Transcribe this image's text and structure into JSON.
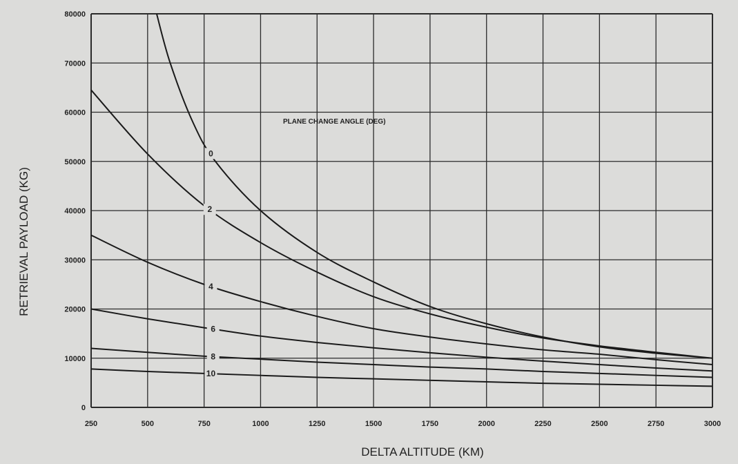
{
  "chart_data": {
    "type": "line",
    "title": "",
    "xlabel": "DELTA ALTITUDE (KM)",
    "ylabel": "RETRIEVAL PAYLOAD (KG)",
    "annotation": "PLANE CHANGE ANGLE (DEG)",
    "xlim": [
      250,
      3000
    ],
    "ylim": [
      0,
      80000
    ],
    "x_ticks": [
      250,
      500,
      750,
      1000,
      1250,
      1500,
      1750,
      2000,
      2250,
      2500,
      2750,
      3000
    ],
    "y_ticks": [
      0,
      10000,
      20000,
      30000,
      40000,
      50000,
      60000,
      70000,
      80000
    ],
    "grid": true,
    "legend": "none",
    "series": [
      {
        "name": "0",
        "x": [
          540,
          600,
          700,
          800,
          1000,
          1250,
          1500,
          1750,
          2000,
          2250,
          2500,
          2750,
          3000
        ],
        "y": [
          80000,
          70000,
          58000,
          50000,
          40000,
          31500,
          25500,
          20500,
          17000,
          14300,
          12300,
          11000,
          10000
        ]
      },
      {
        "name": "2",
        "x": [
          250,
          500,
          750,
          1000,
          1250,
          1500,
          1750,
          2000,
          2250,
          2500,
          2750,
          3000
        ],
        "y": [
          64500,
          51500,
          41000,
          33500,
          27500,
          22500,
          19000,
          16300,
          14100,
          12500,
          11200,
          10000
        ]
      },
      {
        "name": "4",
        "x": [
          250,
          500,
          750,
          1000,
          1250,
          1500,
          1750,
          2000,
          2250,
          2500,
          2750,
          3000
        ],
        "y": [
          35000,
          29500,
          25000,
          21500,
          18500,
          16000,
          14300,
          12900,
          11700,
          10800,
          9700,
          8700
        ]
      },
      {
        "name": "6",
        "x": [
          250,
          500,
          750,
          1000,
          1250,
          1500,
          1750,
          2000,
          2250,
          2500,
          2750,
          3000
        ],
        "y": [
          20000,
          18000,
          16200,
          14500,
          13200,
          12100,
          11100,
          10200,
          9400,
          8700,
          8000,
          7400
        ]
      },
      {
        "name": "8",
        "x": [
          250,
          500,
          750,
          1000,
          1250,
          1500,
          1750,
          2000,
          2250,
          2500,
          2750,
          3000
        ],
        "y": [
          12000,
          11200,
          10400,
          9800,
          9200,
          8700,
          8200,
          7800,
          7300,
          6900,
          6500,
          6100
        ]
      },
      {
        "name": "10",
        "x": [
          250,
          500,
          750,
          1000,
          1250,
          1500,
          1750,
          2000,
          2250,
          2500,
          2750,
          3000
        ],
        "y": [
          7800,
          7300,
          6900,
          6500,
          6100,
          5800,
          5500,
          5200,
          4900,
          4700,
          4500,
          4300
        ]
      }
    ],
    "curve_label_x": [
      780,
      775,
      780,
      790,
      790,
      780
    ],
    "line_color": "#1a1a1a",
    "grid_color": "#2a2a2a",
    "background_color": "#dcdcda"
  }
}
